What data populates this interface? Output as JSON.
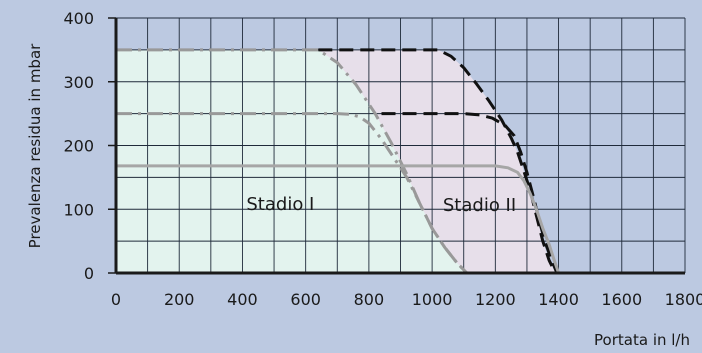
{
  "chart_data": {
    "type": "line",
    "title": "",
    "xlabel": "Portata in l/h",
    "ylabel": "Prevalenza residua in mbar",
    "xlim": [
      0,
      1800
    ],
    "ylim": [
      0,
      400
    ],
    "x_ticks": [
      0,
      200,
      400,
      600,
      800,
      1000,
      1200,
      1400,
      1600,
      1800
    ],
    "y_ticks": [
      0,
      100,
      200,
      300,
      400
    ],
    "grid": true,
    "legend": "none",
    "colors": {
      "background": "#bcc9e1",
      "grid": "#1f2a3a",
      "stage1_fill": "#e3f3ee",
      "stage2_fill": "#e7dfea",
      "dashdot_curve": "#999999",
      "dashed_curve": "#111111",
      "solid_curve": "#a6a6a6",
      "axis": "#1a1a1a"
    },
    "annotations": [
      {
        "text": "Stadio I",
        "x": 520,
        "y": 110
      },
      {
        "text": "Stadio II",
        "x": 1150,
        "y": 108
      }
    ],
    "series": [
      {
        "style": "dashdot",
        "points": [
          [
            0,
            350
          ],
          [
            640,
            350
          ],
          [
            700,
            330
          ],
          [
            760,
            295
          ],
          [
            820,
            250
          ],
          [
            870,
            205
          ],
          [
            920,
            155
          ],
          [
            960,
            110
          ],
          [
            1000,
            70
          ],
          [
            1040,
            40
          ],
          [
            1080,
            15
          ],
          [
            1110,
            0
          ]
        ]
      },
      {
        "style": "dashdot",
        "points": [
          [
            0,
            250
          ],
          [
            700,
            250
          ],
          [
            740,
            249
          ],
          [
            770,
            245
          ],
          [
            800,
            235
          ],
          [
            840,
            210
          ],
          [
            880,
            180
          ],
          [
            920,
            150
          ],
          [
            960,
            110
          ],
          [
            1000,
            70
          ],
          [
            1040,
            40
          ],
          [
            1080,
            15
          ],
          [
            1110,
            0
          ]
        ]
      },
      {
        "style": "dashed",
        "points": [
          [
            640,
            350
          ],
          [
            1020,
            350
          ],
          [
            1060,
            340
          ],
          [
            1100,
            322
          ],
          [
            1140,
            297
          ],
          [
            1180,
            270
          ],
          [
            1220,
            240
          ],
          [
            1250,
            212
          ],
          [
            1270,
            190
          ],
          [
            1290,
            160
          ],
          [
            1310,
            130
          ],
          [
            1330,
            90
          ],
          [
            1350,
            50
          ],
          [
            1370,
            20
          ],
          [
            1390,
            0
          ]
        ]
      },
      {
        "style": "dashed",
        "points": [
          [
            840,
            250
          ],
          [
            1100,
            250
          ],
          [
            1150,
            248
          ],
          [
            1190,
            243
          ],
          [
            1230,
            232
          ],
          [
            1260,
            215
          ],
          [
            1280,
            190
          ],
          [
            1300,
            158
          ],
          [
            1320,
            120
          ],
          [
            1340,
            80
          ],
          [
            1360,
            45
          ],
          [
            1380,
            18
          ],
          [
            1395,
            0
          ]
        ]
      },
      {
        "style": "solid",
        "points": [
          [
            0,
            168
          ],
          [
            1200,
            168
          ],
          [
            1240,
            165
          ],
          [
            1270,
            158
          ],
          [
            1290,
            145
          ],
          [
            1310,
            125
          ],
          [
            1330,
            100
          ],
          [
            1350,
            70
          ],
          [
            1370,
            45
          ],
          [
            1385,
            22
          ],
          [
            1400,
            0
          ]
        ]
      }
    ]
  }
}
